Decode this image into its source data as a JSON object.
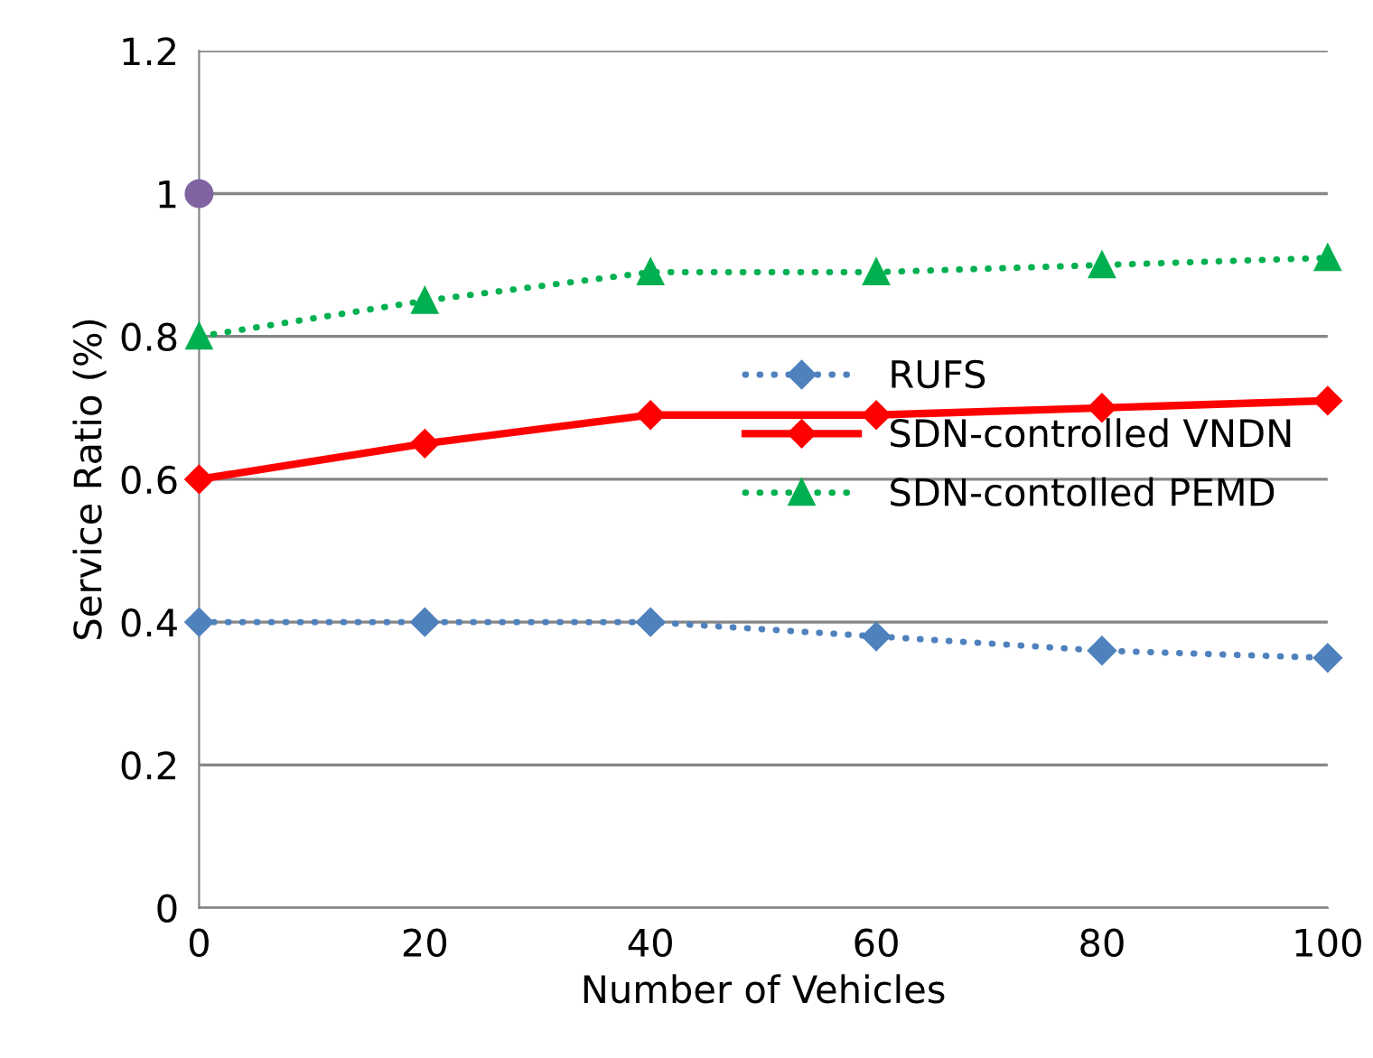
{
  "chart_data": {
    "type": "line",
    "xlabel": "Number of Vehicles",
    "ylabel": "Service Ratio (%)",
    "x": [
      0,
      20,
      40,
      60,
      80,
      100
    ],
    "series": [
      {
        "name": "RUFS",
        "color": "#4f81bd",
        "values": [
          0.4,
          0.4,
          0.4,
          0.38,
          0.36,
          0.35
        ],
        "marker": "diamond",
        "line_style": "dotted"
      },
      {
        "name": "SDN-controlled VNDN",
        "color": "#ff0000",
        "values": [
          0.6,
          0.65,
          0.69,
          0.69,
          0.7,
          0.71
        ],
        "marker": "diamond",
        "line_style": "solid"
      },
      {
        "name": "SDN-contolled PEMD",
        "color": "#00b050",
        "values": [
          0.8,
          0.85,
          0.89,
          0.89,
          0.9,
          0.91
        ],
        "marker": "triangle",
        "line_style": "dotted"
      },
      {
        "type": "scatter",
        "color": "#8064a2",
        "x": [
          0
        ],
        "values": [
          1.0
        ],
        "marker": "circle"
      }
    ],
    "xlim": [
      0,
      100
    ],
    "xticks": [
      0,
      20,
      40,
      60,
      80,
      100
    ],
    "ylim": [
      0,
      1.2
    ],
    "yticks": [
      0,
      0.2,
      0.4,
      0.6,
      0.8,
      1,
      1.2
    ],
    "grid": "y",
    "legend": "right"
  }
}
